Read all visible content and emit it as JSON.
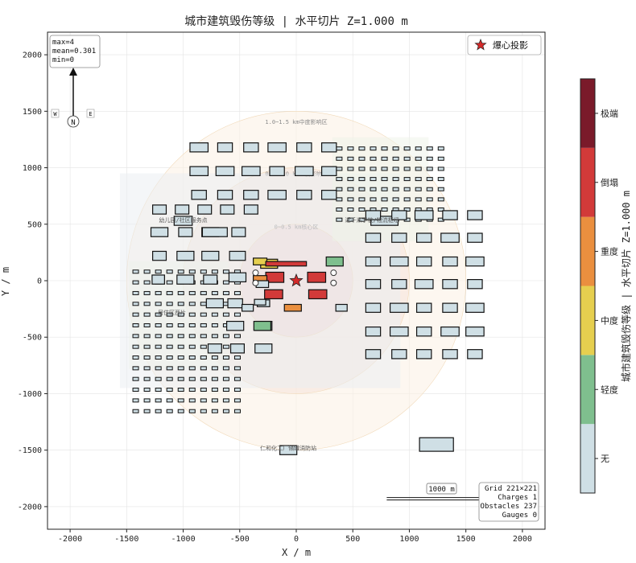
{
  "chart_data": {
    "type": "heatmap",
    "title": "城市建筑毁伤等级 | 水平切片 Z=1.000 m",
    "xlabel": "X / m",
    "ylabel": "Y / m",
    "xlim": [
      -2200,
      2200
    ],
    "ylim": [
      -2200,
      2200
    ],
    "xticks": [
      -2000,
      -1500,
      -1000,
      -500,
      0,
      500,
      1000,
      1500,
      2000
    ],
    "yticks": [
      -2000,
      -1500,
      -1000,
      -500,
      0,
      500,
      1000,
      1500,
      2000
    ],
    "grid": true,
    "legend": {
      "label": "爆心投影",
      "position": "top-right"
    },
    "stats": [
      "max=4",
      "mean=0.301",
      "min=0"
    ],
    "compass": {
      "north": "N",
      "west": "W",
      "east": "E"
    },
    "scale_bar": {
      "label": "1000 m",
      "length": 1000
    },
    "info_box": [
      "Grid 221×221",
      "Charges 1",
      "Obstacles 237",
      "Gauges 0"
    ],
    "colorbar": {
      "label": "城市建筑毁伤等级 | 水平切片 Z=1.000 m",
      "levels": [
        {
          "value": 0,
          "name": "无",
          "color": "#cfdfe5"
        },
        {
          "value": 1,
          "name": "轻度",
          "color": "#7fbf8e"
        },
        {
          "value": 2,
          "name": "中度",
          "color": "#e6cf4f"
        },
        {
          "value": 3,
          "name": "重度",
          "color": "#ea8f3f"
        },
        {
          "value": 4,
          "name": "倒塌",
          "color": "#d23a39"
        },
        {
          "value": 5,
          "name": "极端",
          "color": "#7a1a2a"
        }
      ]
    },
    "charge": {
      "x": 0,
      "y": 0
    },
    "zone_rings": [
      {
        "r": 500,
        "label": "0~0.5 km核心区",
        "lx": 0,
        "ly": 460
      },
      {
        "r": 1000,
        "label": "0.5~1.0 km重度影响区",
        "lx": 0,
        "ly": 930
      },
      {
        "r": 1500,
        "label": "1.0~1.5 km中度影响区",
        "lx": 0,
        "ly": 1390
      }
    ],
    "site_labels": [
      {
        "text": "幼儿园/社区服务点",
        "x": -1000,
        "y": 520
      },
      {
        "text": "近千米学校/物流枢纽",
        "x": 670,
        "y": 520
      },
      {
        "text": "仁和化工厂储罐消防站",
        "x": -70,
        "y": -1500
      },
      {
        "text": "居住区西片",
        "x": -1100,
        "y": -300
      }
    ],
    "buildings": [
      {
        "x": -860,
        "y": 1180,
        "w": 160,
        "h": 80,
        "level": 0
      },
      {
        "x": -630,
        "y": 1180,
        "w": 130,
        "h": 80,
        "level": 0
      },
      {
        "x": -400,
        "y": 1180,
        "w": 130,
        "h": 80,
        "level": 0
      },
      {
        "x": -170,
        "y": 1180,
        "w": 160,
        "h": 80,
        "level": 0
      },
      {
        "x": 70,
        "y": 1180,
        "w": 130,
        "h": 80,
        "level": 0
      },
      {
        "x": 290,
        "y": 1180,
        "w": 130,
        "h": 80,
        "level": 0
      },
      {
        "x": -860,
        "y": 970,
        "w": 160,
        "h": 80,
        "level": 0
      },
      {
        "x": -630,
        "y": 970,
        "w": 160,
        "h": 80,
        "level": 0
      },
      {
        "x": -400,
        "y": 970,
        "w": 160,
        "h": 80,
        "level": 0
      },
      {
        "x": -170,
        "y": 970,
        "w": 130,
        "h": 80,
        "level": 0
      },
      {
        "x": 70,
        "y": 970,
        "w": 160,
        "h": 80,
        "level": 0
      },
      {
        "x": 290,
        "y": 970,
        "w": 130,
        "h": 80,
        "level": 0
      },
      {
        "x": -860,
        "y": 760,
        "w": 130,
        "h": 80,
        "level": 0
      },
      {
        "x": -630,
        "y": 760,
        "w": 130,
        "h": 80,
        "level": 0
      },
      {
        "x": -400,
        "y": 760,
        "w": 130,
        "h": 80,
        "level": 0
      },
      {
        "x": -170,
        "y": 760,
        "w": 160,
        "h": 80,
        "level": 0
      },
      {
        "x": 70,
        "y": 760,
        "w": 130,
        "h": 80,
        "level": 0
      },
      {
        "x": 290,
        "y": 760,
        "w": 130,
        "h": 80,
        "level": 0
      },
      {
        "x": -1210,
        "y": 630,
        "w": 120,
        "h": 80,
        "level": 0
      },
      {
        "x": -1010,
        "y": 630,
        "w": 120,
        "h": 80,
        "level": 0
      },
      {
        "x": -810,
        "y": 630,
        "w": 120,
        "h": 80,
        "level": 0
      },
      {
        "x": -610,
        "y": 630,
        "w": 120,
        "h": 80,
        "level": 0
      },
      {
        "x": -400,
        "y": 630,
        "w": 120,
        "h": 80,
        "level": 0
      },
      {
        "x": -1000,
        "y": 530,
        "w": 160,
        "h": 80,
        "level": 0
      },
      {
        "x": -1210,
        "y": 430,
        "w": 150,
        "h": 80,
        "level": 0
      },
      {
        "x": -980,
        "y": 430,
        "w": 120,
        "h": 80,
        "level": 0
      },
      {
        "x": -760,
        "y": 430,
        "w": 150,
        "h": 80,
        "level": 0
      },
      {
        "x": -720,
        "y": 430,
        "w": 220,
        "h": 80,
        "level": 0
      },
      {
        "x": -510,
        "y": 430,
        "w": 120,
        "h": 80,
        "level": 0
      },
      {
        "x": -1210,
        "y": 220,
        "w": 120,
        "h": 80,
        "level": 0
      },
      {
        "x": -980,
        "y": 220,
        "w": 150,
        "h": 80,
        "level": 0
      },
      {
        "x": -760,
        "y": 220,
        "w": 150,
        "h": 80,
        "level": 0
      },
      {
        "x": -520,
        "y": 220,
        "w": 140,
        "h": 80,
        "level": 0
      },
      {
        "x": -1220,
        "y": 10,
        "w": 110,
        "h": 80,
        "level": 0
      },
      {
        "x": -980,
        "y": 10,
        "w": 150,
        "h": 80,
        "level": 0
      },
      {
        "x": -760,
        "y": 10,
        "w": 120,
        "h": 80,
        "level": 0
      },
      {
        "x": -520,
        "y": 30,
        "w": 150,
        "h": 80,
        "level": 0
      },
      {
        "x": -540,
        "y": -200,
        "w": 130,
        "h": 80,
        "level": 0
      },
      {
        "x": -720,
        "y": -200,
        "w": 150,
        "h": 80,
        "level": 0
      },
      {
        "x": -540,
        "y": -400,
        "w": 150,
        "h": 80,
        "level": 0
      },
      {
        "x": -290,
        "y": -400,
        "w": 150,
        "h": 80,
        "level": 0
      },
      {
        "x": -290,
        "y": -600,
        "w": 150,
        "h": 80,
        "level": 0
      },
      {
        "x": -520,
        "y": -600,
        "w": 120,
        "h": 80,
        "level": 0
      },
      {
        "x": -720,
        "y": -600,
        "w": 120,
        "h": 80,
        "level": 0
      },
      {
        "x": -240,
        "y": 150,
        "w": 150,
        "h": 80,
        "level": 2
      },
      {
        "x": -320,
        "y": 170,
        "w": 120,
        "h": 60,
        "level": 2
      },
      {
        "x": -90,
        "y": 150,
        "w": 360,
        "h": 40,
        "level": 4
      },
      {
        "x": 340,
        "y": 170,
        "w": 150,
        "h": 80,
        "level": 1
      },
      {
        "x": -190,
        "y": 30,
        "w": 160,
        "h": 90,
        "level": 4
      },
      {
        "x": -320,
        "y": 10,
        "w": 120,
        "h": 70,
        "level": 3
      },
      {
        "x": 180,
        "y": 30,
        "w": 160,
        "h": 90,
        "level": 4
      },
      {
        "x": -200,
        "y": -120,
        "w": 160,
        "h": 80,
        "level": 4
      },
      {
        "x": 190,
        "y": -120,
        "w": 160,
        "h": 80,
        "level": 4
      },
      {
        "x": -300,
        "y": -30,
        "w": 110,
        "h": 60,
        "level": 0
      },
      {
        "x": -290,
        "y": -200,
        "w": 110,
        "h": 60,
        "level": 0
      },
      {
        "x": -30,
        "y": -240,
        "w": 150,
        "h": 60,
        "level": 3
      },
      {
        "x": -430,
        "y": -240,
        "w": 100,
        "h": 60,
        "level": 0
      },
      {
        "x": -320,
        "y": -190,
        "w": 100,
        "h": 50,
        "level": 0
      },
      {
        "x": 400,
        "y": -240,
        "w": 100,
        "h": 60,
        "level": 0
      },
      {
        "x": -300,
        "y": -400,
        "w": 150,
        "h": 80,
        "level": 1
      },
      {
        "x": 780,
        "y": 530,
        "w": 240,
        "h": 80,
        "level": 0
      },
      {
        "x": 680,
        "y": 580,
        "w": 130,
        "h": 80,
        "level": 0
      },
      {
        "x": 910,
        "y": 580,
        "w": 130,
        "h": 80,
        "level": 0
      },
      {
        "x": 1130,
        "y": 580,
        "w": 160,
        "h": 80,
        "level": 0
      },
      {
        "x": 1360,
        "y": 580,
        "w": 130,
        "h": 80,
        "level": 0
      },
      {
        "x": 1580,
        "y": 580,
        "w": 130,
        "h": 80,
        "level": 0
      },
      {
        "x": 680,
        "y": 380,
        "w": 130,
        "h": 80,
        "level": 0
      },
      {
        "x": 910,
        "y": 380,
        "w": 130,
        "h": 80,
        "level": 0
      },
      {
        "x": 1130,
        "y": 380,
        "w": 130,
        "h": 80,
        "level": 0
      },
      {
        "x": 1360,
        "y": 380,
        "w": 160,
        "h": 80,
        "level": 0
      },
      {
        "x": 1580,
        "y": 380,
        "w": 130,
        "h": 80,
        "level": 0
      },
      {
        "x": 680,
        "y": 170,
        "w": 130,
        "h": 80,
        "level": 0
      },
      {
        "x": 910,
        "y": 170,
        "w": 160,
        "h": 80,
        "level": 0
      },
      {
        "x": 1130,
        "y": 170,
        "w": 130,
        "h": 80,
        "level": 0
      },
      {
        "x": 1360,
        "y": 170,
        "w": 130,
        "h": 80,
        "level": 0
      },
      {
        "x": 1580,
        "y": 170,
        "w": 160,
        "h": 80,
        "level": 0
      },
      {
        "x": 680,
        "y": -30,
        "w": 130,
        "h": 80,
        "level": 0
      },
      {
        "x": 910,
        "y": -30,
        "w": 130,
        "h": 80,
        "level": 0
      },
      {
        "x": 1130,
        "y": -30,
        "w": 160,
        "h": 80,
        "level": 0
      },
      {
        "x": 1360,
        "y": -30,
        "w": 130,
        "h": 80,
        "level": 0
      },
      {
        "x": 1580,
        "y": -30,
        "w": 130,
        "h": 80,
        "level": 0
      },
      {
        "x": 680,
        "y": -240,
        "w": 130,
        "h": 80,
        "level": 0
      },
      {
        "x": 910,
        "y": -240,
        "w": 160,
        "h": 80,
        "level": 0
      },
      {
        "x": 1130,
        "y": -240,
        "w": 130,
        "h": 80,
        "level": 0
      },
      {
        "x": 1360,
        "y": -240,
        "w": 130,
        "h": 80,
        "level": 0
      },
      {
        "x": 1580,
        "y": -240,
        "w": 160,
        "h": 80,
        "level": 0
      },
      {
        "x": 680,
        "y": -450,
        "w": 130,
        "h": 80,
        "level": 0
      },
      {
        "x": 910,
        "y": -450,
        "w": 160,
        "h": 80,
        "level": 0
      },
      {
        "x": 1130,
        "y": -450,
        "w": 130,
        "h": 80,
        "level": 0
      },
      {
        "x": 1360,
        "y": -450,
        "w": 160,
        "h": 80,
        "level": 0
      },
      {
        "x": 1580,
        "y": -450,
        "w": 160,
        "h": 80,
        "level": 0
      },
      {
        "x": 680,
        "y": -650,
        "w": 130,
        "h": 80,
        "level": 0
      },
      {
        "x": 910,
        "y": -650,
        "w": 130,
        "h": 80,
        "level": 0
      },
      {
        "x": 1130,
        "y": -650,
        "w": 130,
        "h": 80,
        "level": 0
      },
      {
        "x": 1360,
        "y": -650,
        "w": 130,
        "h": 80,
        "level": 0
      },
      {
        "x": 1580,
        "y": -650,
        "w": 130,
        "h": 80,
        "level": 0
      },
      {
        "x": 1240,
        "y": -1450,
        "w": 300,
        "h": 120,
        "level": 0
      },
      {
        "x": -70,
        "y": -1500,
        "w": 150,
        "h": 80,
        "level": 0
      }
    ],
    "tank_markers": [
      {
        "x": -360,
        "y": 70
      },
      {
        "x": -360,
        "y": -20
      },
      {
        "x": 330,
        "y": 70
      },
      {
        "x": 330,
        "y": -20
      }
    ]
  }
}
